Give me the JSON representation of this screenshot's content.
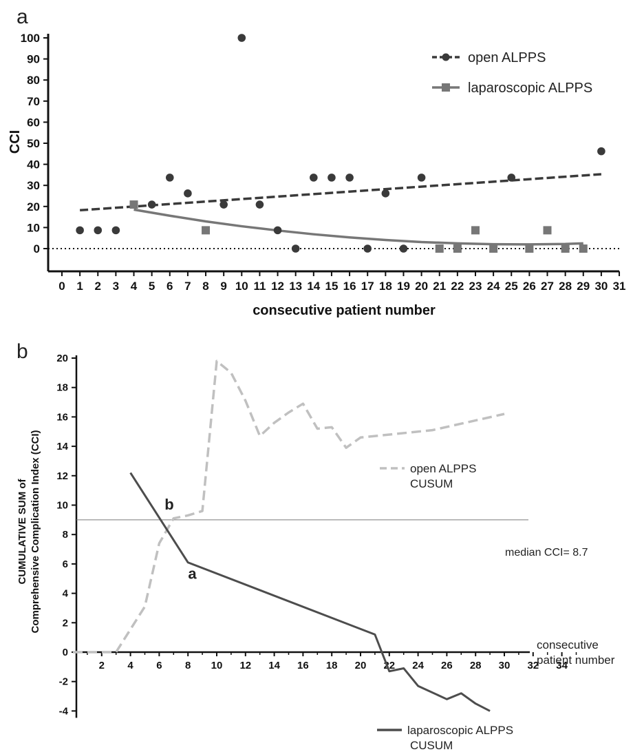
{
  "chart_data": [
    {
      "panel_label": "a",
      "type": "scatter",
      "xlabel": "consecutive patient number",
      "ylabel": "CCI",
      "xlim": [
        0,
        31
      ],
      "ylim": [
        0,
        100
      ],
      "x_ticks": [
        "0",
        "1",
        "2",
        "3",
        "4",
        "5",
        "6",
        "7",
        "8",
        "9",
        "10",
        "11",
        "12",
        "13",
        "14",
        "15",
        "16",
        "17",
        "18",
        "19",
        "20",
        "21",
        "22",
        "23",
        "24",
        "25",
        "26",
        "27",
        "28",
        "29",
        "30",
        "31"
      ],
      "y_ticks": [
        "0",
        "10",
        "20",
        "30",
        "40",
        "50",
        "60",
        "70",
        "80",
        "90",
        "100"
      ],
      "reference_line_y": 0,
      "legend_position": "top-right",
      "series": [
        {
          "name": "open ALPPS",
          "marker": "circle",
          "color": "#3a3a3a",
          "x": [
            1,
            2,
            3,
            5,
            6,
            7,
            9,
            10,
            11,
            12,
            13,
            14,
            15,
            16,
            17,
            18,
            19,
            20,
            25,
            30
          ],
          "y": [
            8.7,
            8.7,
            8.7,
            20.9,
            33.7,
            26.2,
            20.9,
            100,
            20.9,
            8.7,
            0,
            33.7,
            33.7,
            33.7,
            0,
            26.2,
            0,
            33.7,
            33.7,
            46.2
          ],
          "trend": {
            "kind": "linear",
            "x": [
              1,
              30
            ],
            "y": [
              18.2,
              35.3
            ]
          }
        },
        {
          "name": "laparoscopic ALPPS",
          "marker": "square",
          "color": "#777777",
          "x": [
            4,
            8,
            21,
            22,
            23,
            24,
            26,
            27,
            28,
            29
          ],
          "y": [
            20.9,
            8.7,
            0,
            0,
            8.7,
            0,
            0,
            8.7,
            0,
            0
          ],
          "trend": {
            "kind": "quadratic",
            "x": [
              4,
              6,
              8,
              10,
              12,
              14,
              16,
              18,
              20,
              22,
              24,
              26,
              28,
              29
            ],
            "y": [
              18.5,
              15.6,
              12.9,
              10.6,
              8.6,
              6.8,
              5.3,
              4.1,
              3.1,
              2.5,
              2.1,
              2.0,
              2.2,
              2.5
            ]
          }
        }
      ]
    },
    {
      "panel_label": "b",
      "type": "line",
      "xlabel": "consecutive patient number",
      "ylabel": "CUMULATIVE SUM of Comprehensive Complication Index (CCI)",
      "ylabel_line1": "CUMULATIVE SUM of",
      "ylabel_line2": "Comprehensive Complication Index (CCI)",
      "xlabel_line1": "consecutive",
      "xlabel_line2": "patient number",
      "xlim": [
        0,
        35
      ],
      "ylim": [
        -4,
        20
      ],
      "x_ticks": [
        "2",
        "4",
        "6",
        "8",
        "10",
        "12",
        "14",
        "16",
        "18",
        "20",
        "22",
        "24",
        "26",
        "28",
        "30",
        "32",
        "34"
      ],
      "y_ticks": [
        "-4",
        "-2",
        "0",
        "2",
        "4",
        "6",
        "8",
        "10",
        "12",
        "14",
        "16",
        "18",
        "20"
      ],
      "median_line": {
        "y": 9.0,
        "label": "median CCI= 8.7"
      },
      "annotations": [
        {
          "text": "b",
          "x": 6.7,
          "y": 9.7
        },
        {
          "text": "a",
          "x": 8.3,
          "y": 5.0
        }
      ],
      "series": [
        {
          "name": "open ALPPS CUSUM",
          "legend_line1": "open ALPPS",
          "legend_line2": "CUSUM",
          "style": "dashed",
          "color": "#c0c0c0",
          "x": [
            0,
            1,
            2,
            3,
            5,
            6,
            7,
            8,
            9,
            10,
            11,
            12,
            13,
            14,
            15,
            16,
            17,
            18,
            19,
            20,
            25,
            30
          ],
          "y": [
            0,
            0,
            0,
            0,
            3.1,
            7.4,
            9.1,
            9.3,
            9.6,
            19.8,
            19.0,
            17.1,
            14.7,
            15.6,
            16.3,
            16.9,
            15.2,
            15.3,
            13.9,
            14.6,
            15.1,
            16.2
          ]
        },
        {
          "name": "laparoscopic ALPPS CUSUM",
          "legend_line1": "laparoscopic ALPPS",
          "legend_line2": "CUSUM",
          "style": "solid",
          "color": "#4d4d4d",
          "x": [
            4,
            8,
            21,
            22,
            23,
            24,
            26,
            27,
            28,
            29
          ],
          "y": [
            12.2,
            6.1,
            1.2,
            -1.3,
            -1.1,
            -2.3,
            -3.2,
            -2.8,
            -3.5,
            -4.0
          ]
        }
      ]
    }
  ]
}
